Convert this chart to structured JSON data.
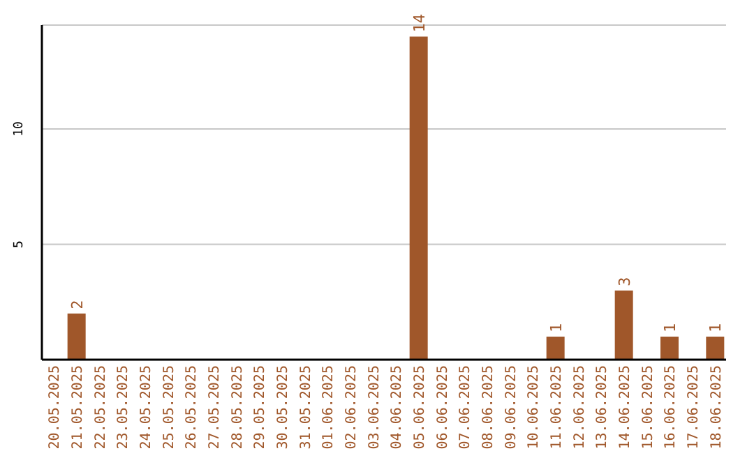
{
  "chart_data": {
    "type": "bar",
    "categories": [
      "20.05.2025",
      "21.05.2025",
      "22.05.2025",
      "23.05.2025",
      "24.05.2025",
      "25.05.2025",
      "26.05.2025",
      "27.05.2025",
      "28.05.2025",
      "29.05.2025",
      "30.05.2025",
      "31.05.2025",
      "01.06.2025",
      "02.06.2025",
      "03.06.2025",
      "04.06.2025",
      "05.06.2025",
      "06.06.2025",
      "07.06.2025",
      "08.06.2025",
      "09.06.2025",
      "10.06.2025",
      "11.06.2025",
      "12.06.2025",
      "13.06.2025",
      "14.06.2025",
      "15.06.2025",
      "16.06.2025",
      "17.06.2025",
      "18.06.2025"
    ],
    "values": [
      0,
      2,
      0,
      0,
      0,
      0,
      0,
      0,
      0,
      0,
      0,
      0,
      0,
      0,
      0,
      0,
      14,
      0,
      0,
      0,
      0,
      0,
      1,
      0,
      0,
      3,
      0,
      1,
      0,
      1
    ],
    "value_labels": [
      null,
      "2",
      null,
      null,
      null,
      null,
      null,
      null,
      null,
      null,
      null,
      null,
      null,
      null,
      null,
      null,
      "14",
      null,
      null,
      null,
      null,
      null,
      "1",
      null,
      null,
      "3",
      null,
      "1",
      null,
      "1"
    ],
    "color": "#a0572a",
    "ylim": [
      0,
      14.5
    ],
    "yticks": [
      5,
      10
    ],
    "grid": "y"
  }
}
